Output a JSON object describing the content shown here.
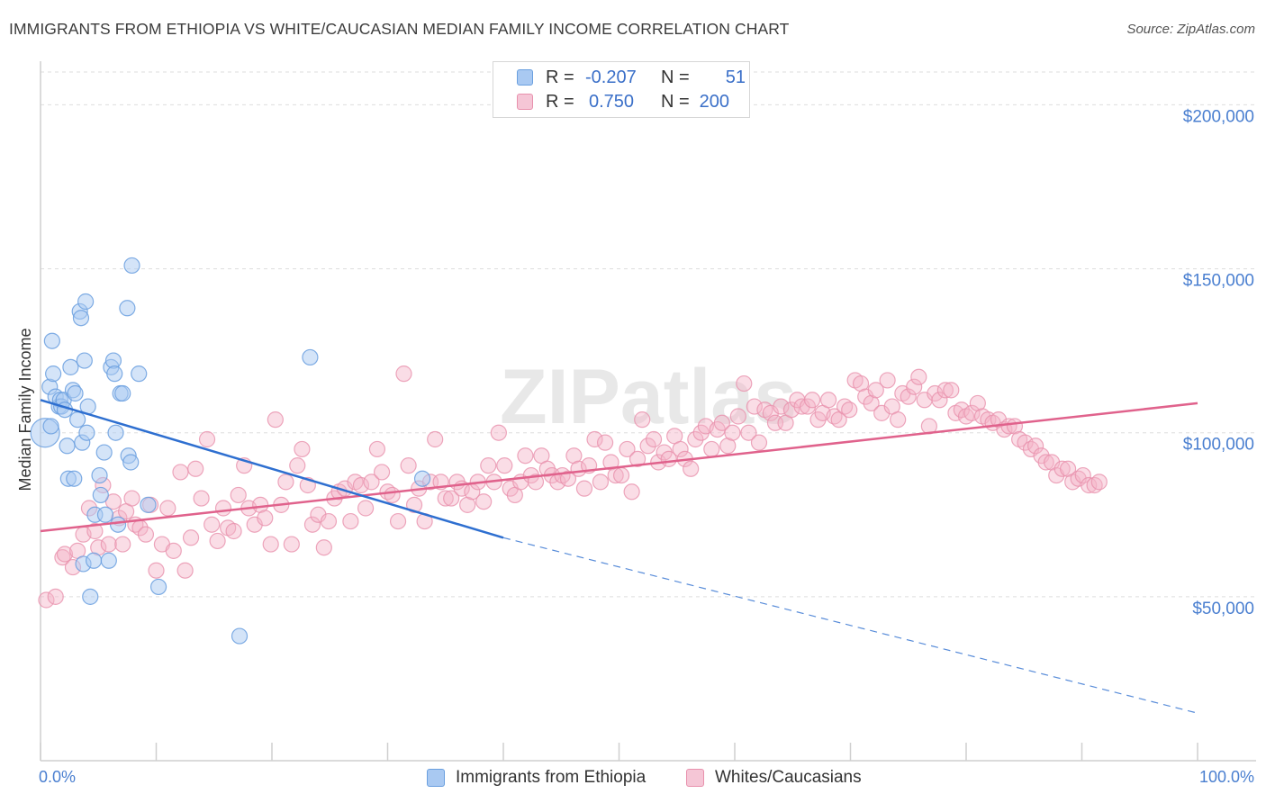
{
  "title": "IMMIGRANTS FROM ETHIOPIA VS WHITE/CAUCASIAN MEDIAN FAMILY INCOME CORRELATION CHART",
  "source": "Source: ZipAtlas.com",
  "watermark": "ZIPatlas",
  "legend_top": {
    "rows": [
      {
        "r_label": "R =",
        "r_value": "-0.207",
        "n_label": "N =",
        "n_value": "51",
        "color": "#a9c9f2"
      },
      {
        "r_label": "R =",
        "r_value": "0.750",
        "n_label": "N =",
        "n_value": "200",
        "color": "#f5b3c8"
      }
    ]
  },
  "legend_bottom": [
    {
      "label": "Immigrants from Ethiopia",
      "color": "#a9c9f2"
    },
    {
      "label": "Whites/Caucasians",
      "color": "#f5b3c8"
    }
  ],
  "colors": {
    "blue_fill": "#a9c9f2",
    "blue_stroke": "#6a9fdf",
    "blue_line": "#2e6fd0",
    "pink_fill": "#f5b3c8",
    "pink_stroke": "#e891ad",
    "pink_line": "#e0628c",
    "tick_text": "#4a7fd0",
    "grid": "#dddddd"
  },
  "chart_data": {
    "type": "scatter",
    "title": "IMMIGRANTS FROM ETHIOPIA VS WHITE/CAUCASIAN MEDIAN FAMILY INCOME CORRELATION CHART",
    "xlabel": "",
    "ylabel": "Median Family Income",
    "xlim": [
      0,
      100
    ],
    "ylim": [
      0,
      210000
    ],
    "x_tick_labels": [
      "0.0%",
      "100.0%"
    ],
    "y_ticks": [
      50000,
      100000,
      150000,
      200000
    ],
    "y_tick_labels": [
      "$50,000",
      "$100,000",
      "$150,000",
      "$200,000"
    ],
    "grid": true,
    "series": [
      {
        "name": "Immigrants from Ethiopia",
        "r": -0.207,
        "n": 51,
        "trend": {
          "x0": 0,
          "y0": 110000,
          "x1": 40,
          "y1": 68000,
          "dash_x1": 100,
          "dash_y1": 14500
        },
        "points": [
          [
            0.4,
            100000
          ],
          [
            0.8,
            114000
          ],
          [
            0.9,
            102000
          ],
          [
            1.0,
            128000
          ],
          [
            1.1,
            118000
          ],
          [
            1.3,
            111000
          ],
          [
            1.6,
            108000
          ],
          [
            1.7,
            110000
          ],
          [
            1.8,
            108000
          ],
          [
            2.0,
            110000
          ],
          [
            2.1,
            107000
          ],
          [
            2.3,
            96000
          ],
          [
            2.4,
            86000
          ],
          [
            2.6,
            120000
          ],
          [
            2.8,
            113000
          ],
          [
            2.9,
            86000
          ],
          [
            3.0,
            112000
          ],
          [
            3.2,
            104000
          ],
          [
            3.4,
            137000
          ],
          [
            3.5,
            135000
          ],
          [
            3.6,
            97000
          ],
          [
            3.7,
            60000
          ],
          [
            3.8,
            122000
          ],
          [
            3.9,
            140000
          ],
          [
            4.0,
            100000
          ],
          [
            4.1,
            108000
          ],
          [
            4.3,
            50000
          ],
          [
            4.6,
            61000
          ],
          [
            4.7,
            75000
          ],
          [
            5.1,
            87000
          ],
          [
            5.2,
            81000
          ],
          [
            5.5,
            94000
          ],
          [
            5.6,
            75000
          ],
          [
            5.9,
            61000
          ],
          [
            6.1,
            120000
          ],
          [
            6.3,
            122000
          ],
          [
            6.4,
            118000
          ],
          [
            6.5,
            100000
          ],
          [
            6.7,
            72000
          ],
          [
            6.9,
            112000
          ],
          [
            7.1,
            112000
          ],
          [
            7.5,
            138000
          ],
          [
            7.6,
            93000
          ],
          [
            7.8,
            91000
          ],
          [
            7.9,
            151000
          ],
          [
            8.5,
            118000
          ],
          [
            9.3,
            78000
          ],
          [
            10.2,
            53000
          ],
          [
            17.2,
            38000
          ],
          [
            23.3,
            123000
          ],
          [
            33.0,
            86000
          ]
        ]
      },
      {
        "name": "Whites/Caucasians",
        "r": 0.75,
        "n": 200,
        "trend": {
          "x0": 0,
          "y0": 70000,
          "x1": 100,
          "y1": 109000
        },
        "points": [
          [
            0.5,
            49000
          ],
          [
            1.3,
            50000
          ],
          [
            1.9,
            62000
          ],
          [
            2.1,
            63000
          ],
          [
            2.8,
            59000
          ],
          [
            3.2,
            64000
          ],
          [
            3.7,
            69000
          ],
          [
            4.2,
            77000
          ],
          [
            4.7,
            70000
          ],
          [
            5.0,
            65000
          ],
          [
            5.4,
            84000
          ],
          [
            5.9,
            66000
          ],
          [
            6.3,
            79000
          ],
          [
            6.8,
            74000
          ],
          [
            7.1,
            66000
          ],
          [
            7.4,
            76000
          ],
          [
            7.9,
            80000
          ],
          [
            8.2,
            72000
          ],
          [
            8.6,
            71000
          ],
          [
            9.1,
            69000
          ],
          [
            9.5,
            78000
          ],
          [
            10.0,
            58000
          ],
          [
            10.5,
            66000
          ],
          [
            11.0,
            77000
          ],
          [
            11.5,
            64000
          ],
          [
            12.1,
            88000
          ],
          [
            12.5,
            58000
          ],
          [
            13.0,
            68000
          ],
          [
            13.4,
            89000
          ],
          [
            13.9,
            80000
          ],
          [
            14.4,
            98000
          ],
          [
            14.8,
            72000
          ],
          [
            15.3,
            67000
          ],
          [
            15.8,
            77000
          ],
          [
            16.2,
            71000
          ],
          [
            16.7,
            70000
          ],
          [
            17.1,
            81000
          ],
          [
            17.6,
            90000
          ],
          [
            18.0,
            77000
          ],
          [
            18.5,
            72000
          ],
          [
            19.0,
            78000
          ],
          [
            19.4,
            74000
          ],
          [
            19.9,
            66000
          ],
          [
            20.3,
            104000
          ],
          [
            20.8,
            78000
          ],
          [
            21.2,
            85000
          ],
          [
            21.7,
            66000
          ],
          [
            22.2,
            90000
          ],
          [
            22.6,
            95000
          ],
          [
            23.1,
            84000
          ],
          [
            23.5,
            72000
          ],
          [
            24.0,
            75000
          ],
          [
            24.5,
            65000
          ],
          [
            24.9,
            73000
          ],
          [
            25.4,
            80000
          ],
          [
            25.8,
            82000
          ],
          [
            26.3,
            83000
          ],
          [
            26.8,
            73000
          ],
          [
            27.2,
            85000
          ],
          [
            27.7,
            84000
          ],
          [
            28.1,
            77000
          ],
          [
            28.6,
            85000
          ],
          [
            29.1,
            95000
          ],
          [
            29.5,
            88000
          ],
          [
            30.0,
            82000
          ],
          [
            30.4,
            81000
          ],
          [
            30.9,
            73000
          ],
          [
            31.4,
            118000
          ],
          [
            31.8,
            90000
          ],
          [
            32.3,
            78000
          ],
          [
            32.7,
            83000
          ],
          [
            33.2,
            73000
          ],
          [
            33.7,
            85000
          ],
          [
            34.1,
            98000
          ],
          [
            34.6,
            85000
          ],
          [
            35.0,
            80000
          ],
          [
            35.5,
            80000
          ],
          [
            36.0,
            85000
          ],
          [
            36.4,
            83000
          ],
          [
            36.9,
            78000
          ],
          [
            37.3,
            82000
          ],
          [
            37.8,
            85000
          ],
          [
            38.3,
            79000
          ],
          [
            38.7,
            90000
          ],
          [
            39.2,
            85000
          ],
          [
            39.6,
            100000
          ],
          [
            40.1,
            90000
          ],
          [
            40.6,
            83000
          ],
          [
            41.0,
            81000
          ],
          [
            41.5,
            85000
          ],
          [
            41.9,
            93000
          ],
          [
            42.4,
            87000
          ],
          [
            42.8,
            85000
          ],
          [
            43.3,
            93000
          ],
          [
            43.8,
            89000
          ],
          [
            44.2,
            87000
          ],
          [
            44.7,
            85000
          ],
          [
            45.1,
            87000
          ],
          [
            45.6,
            86000
          ],
          [
            46.1,
            93000
          ],
          [
            46.5,
            89000
          ],
          [
            47.0,
            83000
          ],
          [
            47.4,
            90000
          ],
          [
            47.9,
            98000
          ],
          [
            48.4,
            85000
          ],
          [
            48.8,
            97000
          ],
          [
            49.3,
            91000
          ],
          [
            49.7,
            87000
          ],
          [
            50.2,
            87000
          ],
          [
            50.7,
            95000
          ],
          [
            51.1,
            82000
          ],
          [
            51.6,
            92000
          ],
          [
            52.0,
            104000
          ],
          [
            52.5,
            96000
          ],
          [
            53.0,
            98000
          ],
          [
            53.4,
            91000
          ],
          [
            53.9,
            94000
          ],
          [
            54.3,
            92000
          ],
          [
            54.8,
            99000
          ],
          [
            55.3,
            95000
          ],
          [
            55.7,
            92000
          ],
          [
            56.2,
            89000
          ],
          [
            56.6,
            98000
          ],
          [
            57.1,
            100000
          ],
          [
            57.5,
            102000
          ],
          [
            58.0,
            95000
          ],
          [
            58.5,
            101000
          ],
          [
            58.9,
            103000
          ],
          [
            59.4,
            96000
          ],
          [
            59.8,
            100000
          ],
          [
            60.3,
            105000
          ],
          [
            60.8,
            115000
          ],
          [
            61.2,
            100000
          ],
          [
            61.7,
            108000
          ],
          [
            62.1,
            97000
          ],
          [
            62.6,
            107000
          ],
          [
            63.1,
            106000
          ],
          [
            63.5,
            103000
          ],
          [
            64.0,
            108000
          ],
          [
            64.4,
            103000
          ],
          [
            64.9,
            107000
          ],
          [
            65.4,
            110000
          ],
          [
            65.8,
            108000
          ],
          [
            66.3,
            108000
          ],
          [
            66.7,
            110000
          ],
          [
            67.2,
            104000
          ],
          [
            67.6,
            106000
          ],
          [
            68.1,
            110000
          ],
          [
            68.6,
            105000
          ],
          [
            69.0,
            104000
          ],
          [
            69.5,
            108000
          ],
          [
            69.9,
            107000
          ],
          [
            70.4,
            116000
          ],
          [
            70.9,
            115000
          ],
          [
            71.3,
            111000
          ],
          [
            71.8,
            109000
          ],
          [
            72.2,
            113000
          ],
          [
            72.7,
            106000
          ],
          [
            73.2,
            116000
          ],
          [
            73.6,
            108000
          ],
          [
            74.1,
            104000
          ],
          [
            74.5,
            112000
          ],
          [
            75.0,
            111000
          ],
          [
            75.5,
            114000
          ],
          [
            75.9,
            117000
          ],
          [
            76.4,
            110000
          ],
          [
            76.8,
            102000
          ],
          [
            77.3,
            112000
          ],
          [
            77.7,
            110000
          ],
          [
            78.2,
            113000
          ],
          [
            78.7,
            113000
          ],
          [
            79.1,
            106000
          ],
          [
            79.6,
            107000
          ],
          [
            80.0,
            105000
          ],
          [
            80.5,
            106000
          ],
          [
            81.0,
            109000
          ],
          [
            81.4,
            105000
          ],
          [
            81.9,
            104000
          ],
          [
            82.3,
            103000
          ],
          [
            82.8,
            104000
          ],
          [
            83.3,
            101000
          ],
          [
            83.7,
            102000
          ],
          [
            84.2,
            102000
          ],
          [
            84.6,
            98000
          ],
          [
            85.1,
            97000
          ],
          [
            85.6,
            95000
          ],
          [
            86.0,
            96000
          ],
          [
            86.5,
            93000
          ],
          [
            86.9,
            91000
          ],
          [
            87.4,
            91000
          ],
          [
            87.8,
            87000
          ],
          [
            88.3,
            89000
          ],
          [
            88.8,
            89000
          ],
          [
            89.2,
            85000
          ],
          [
            89.7,
            86000
          ],
          [
            90.1,
            87000
          ],
          [
            90.6,
            84000
          ],
          [
            91.1,
            84000
          ],
          [
            91.5,
            85000
          ]
        ]
      }
    ]
  }
}
